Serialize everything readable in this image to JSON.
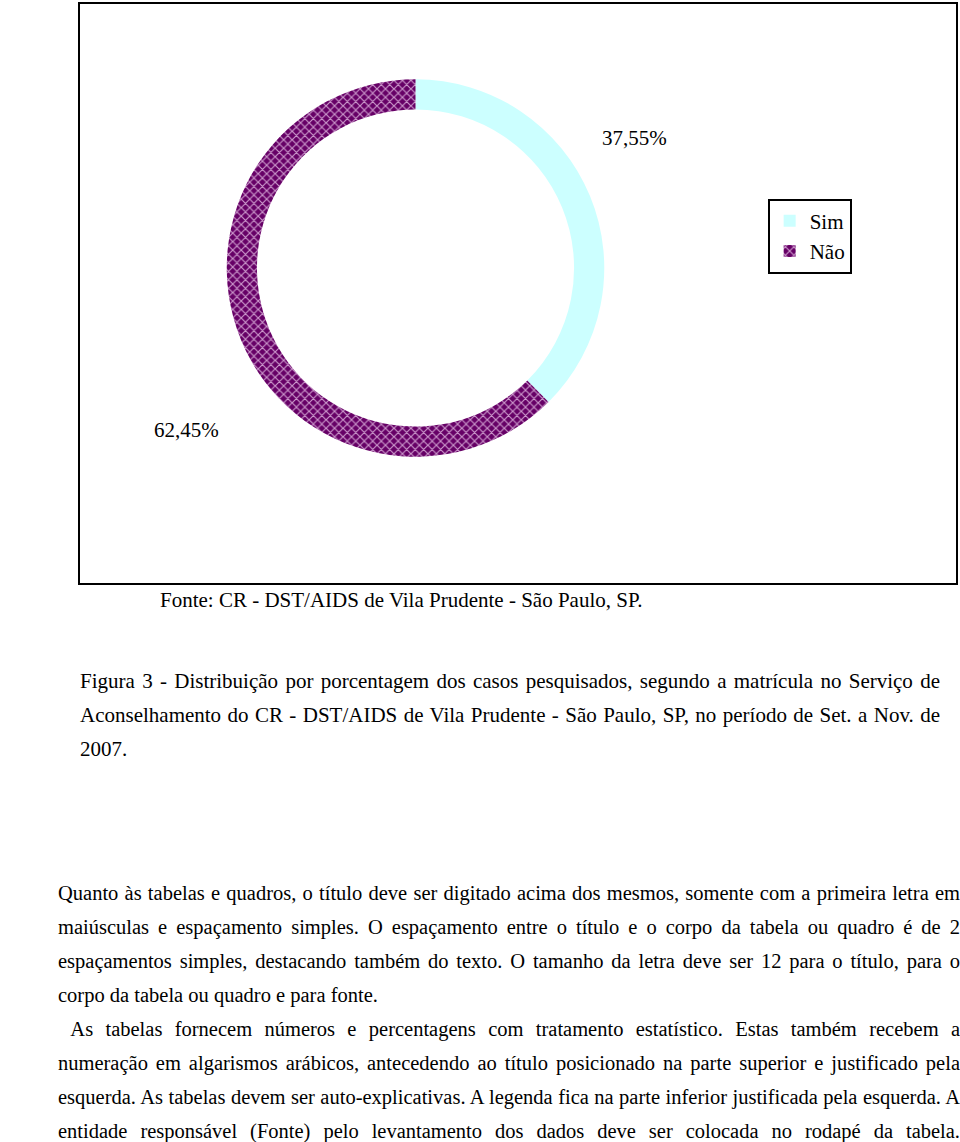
{
  "chart_data": {
    "type": "donut",
    "categories": [
      "Sim",
      "Não"
    ],
    "values": [
      37.55,
      62.45
    ],
    "value_labels": [
      "37,55%",
      "62,45%"
    ],
    "colors": [
      "#ccffff",
      "#660066"
    ],
    "data_labels": true,
    "legend": "right"
  },
  "source": "Fonte: CR - DST/AIDS de Vila Prudente - São Paulo, SP.",
  "caption": "Figura 3 - Distribuição por porcentagem dos casos pesquisados, segundo a matrícula no Serviço de Aconselhamento do CR - DST/AIDS de Vila Prudente - São Paulo, SP, no período de Set. a Nov. de 2007.",
  "paragraphs": [
    "Quanto às tabelas e quadros, o título deve ser digitado acima dos mesmos, somente com a primeira letra em maiúsculas e espaçamento simples. O espaçamento entre o título e o corpo da tabela ou quadro é de 2 espaçamentos simples, destacando também do texto. O tamanho da letra deve ser 12 para o título, para o corpo da tabela ou quadro e para fonte.",
    " As tabelas fornecem números e percentagens com tratamento estatístico. Estas também recebem a numeração em algarismos arábicos, antecedendo ao título posicionado na parte superior e justificado pela esquerda. As tabelas devem ser auto-explicativas. A legenda fica na parte inferior justificada pela esquerda. A entidade responsável (Fonte) pelo levantamento dos dados deve ser colocada no rodapé da tabela."
  ]
}
